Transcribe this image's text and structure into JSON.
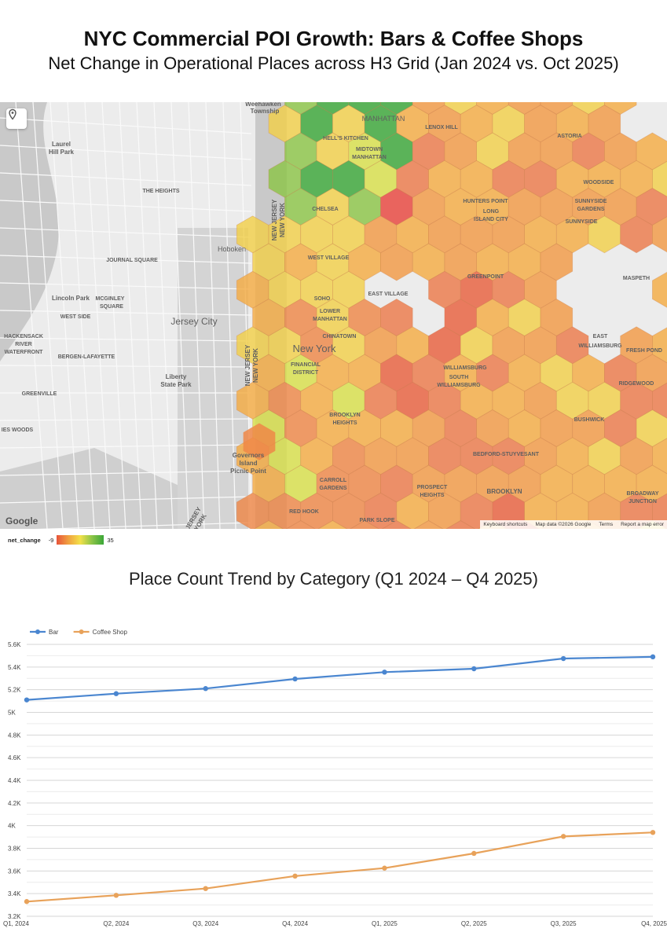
{
  "header": {
    "title": "NYC Commercial POI Growth: Bars & Coffee Shops",
    "subtitle": "Net Change in Operational Places across H3 Grid (Jan 2024 vs. Oct 2025)"
  },
  "map": {
    "labels": [
      "Weehawken",
      "Township",
      "MANHATTAN",
      "LENOX HILL",
      "HELL'S KITCHEN",
      "MIDTOWN",
      "MANHATTAN",
      "ASTORIA",
      "Laurel",
      "Hill Park",
      "THE HEIGHTS",
      "CHELSEA",
      "HUNTERS POINT",
      "LONG",
      "ISLAND CITY",
      "WOODSIDE",
      "SUNNYSIDE",
      "GARDENS",
      "SUNNYSIDE",
      "Hoboken",
      "JOURNAL SQUARE",
      "WEST VILLAGE",
      "GREENPOINT",
      "MASPETH",
      "Lincoln Park",
      "MCGINLEY",
      "SQUARE",
      "WEST SIDE",
      "Jersey City",
      "SOHO",
      "LOWER",
      "MANHATTAN",
      "EAST VILLAGE",
      "HACKENSACK",
      "RIVER",
      "WATERFRONT",
      "BERGEN-LAFAYETTE",
      "New York",
      "CHINATOWN",
      "FINANCIAL",
      "DISTRICT",
      "WILLIAMSBURG",
      "SOUTH",
      "WILLIAMSBURG",
      "EAST",
      "WILLIAMSBURG",
      "FRESH POND",
      "Liberty",
      "State Park",
      "GREENVILLE",
      "RIDGEWOOD",
      "BROOKLYN",
      "HEIGHTS",
      "BUSHWICK",
      "IES WOODS",
      "Governors",
      "Island",
      "Picnic Point",
      "BEDFORD-STUYVESANT",
      "CARROLL",
      "GARDENS",
      "PROSPECT",
      "HEIGHTS",
      "BROOKLYN",
      "BROADWAY",
      "JUNCTION",
      "RED HOOK",
      "PARK SLOPE",
      "NEW JERSEY",
      "NEW YORK",
      "NEW JERSEY",
      "NEW YORK",
      "NEW JERSEY",
      "NEW YORK"
    ],
    "google_logo": "Google",
    "attribution": [
      "Keyboard shortcuts",
      "Map data ©2026 Google",
      "Terms",
      "Report a map error"
    ],
    "legend": {
      "name": "net_change",
      "min": "-9",
      "max": "35"
    },
    "colors": [
      "#3aa638",
      "#8cc448",
      "#d8df4a",
      "#f2d04a",
      "#f4ac44",
      "#f29a46",
      "#ee8748",
      "#ec7a4a",
      "#e8603e",
      "#e8453e"
    ],
    "icons": {
      "locate": "location-pin-icon"
    }
  },
  "chart_data": {
    "type": "line",
    "title": "Place Count Trend by Category (Q1 2024 – Q4 2025)",
    "categories": [
      "Q1, 2024",
      "Q2, 2024",
      "Q3, 2024",
      "Q4, 2024",
      "Q1, 2025",
      "Q2, 2025",
      "Q3, 2025",
      "Q4, 2025"
    ],
    "series": [
      {
        "name": "Bar",
        "color": "#4a86d0",
        "values": [
          5110,
          5165,
          5210,
          5295,
          5355,
          5385,
          5475,
          5490
        ]
      },
      {
        "name": "Coffee Shop",
        "color": "#e8a25a",
        "values": [
          3330,
          3385,
          3445,
          3555,
          3625,
          3755,
          3905,
          3940
        ]
      }
    ],
    "ylim": [
      3200,
      5600
    ],
    "yticks": [
      {
        "v": 3200,
        "label": "3.2K"
      },
      {
        "v": 3400,
        "label": "3.4K"
      },
      {
        "v": 3600,
        "label": "3.6K"
      },
      {
        "v": 3800,
        "label": "3.8K"
      },
      {
        "v": 4000,
        "label": "4K"
      },
      {
        "v": 4200,
        "label": "4.2K"
      },
      {
        "v": 4400,
        "label": "4.4K"
      },
      {
        "v": 4600,
        "label": "4.6K"
      },
      {
        "v": 4800,
        "label": "4.8K"
      },
      {
        "v": 5000,
        "label": "5K"
      },
      {
        "v": 5200,
        "label": "5.2K"
      },
      {
        "v": 5400,
        "label": "5.4K"
      },
      {
        "v": 5600,
        "label": "5.6K"
      }
    ],
    "legend_position": "top-left",
    "grid": true
  }
}
